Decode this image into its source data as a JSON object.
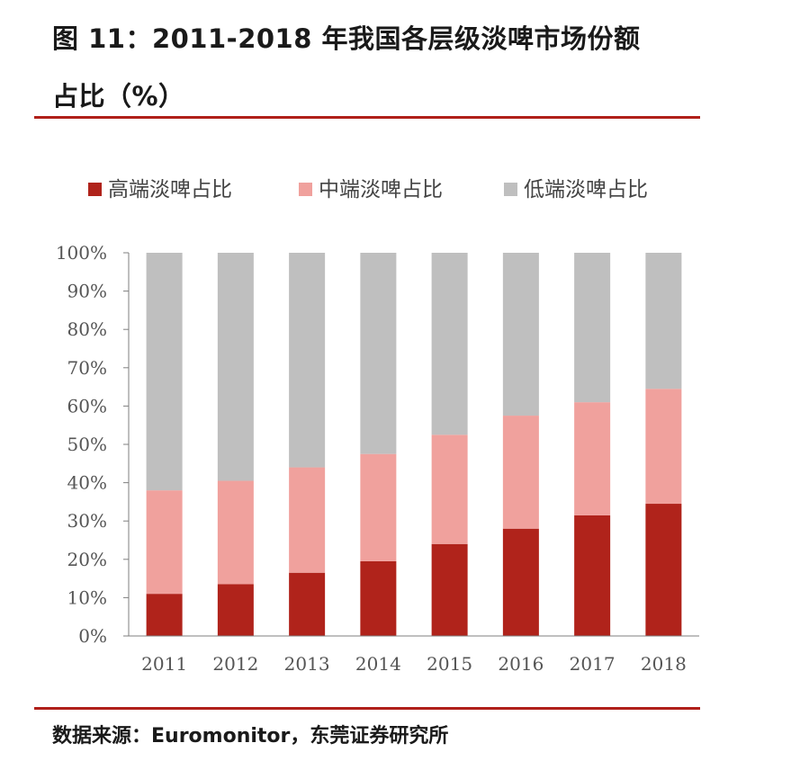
{
  "title_line1": "图 11：2011-2018 年我国各层级淡啤市场份额",
  "title_line2": "占比（%）",
  "source": "数据来源：Euromonitor，东莞证券研究所",
  "colors": {
    "rule": "#b0201a",
    "high": "#b0231b",
    "mid": "#f0a19d",
    "low": "#bfbfbf"
  },
  "chart_data": {
    "type": "bar",
    "stacked": true,
    "categories": [
      "2011",
      "2012",
      "2013",
      "2014",
      "2015",
      "2016",
      "2017",
      "2018"
    ],
    "series": [
      {
        "name": "高端淡啤占比",
        "color": "#b0231b",
        "values": [
          11,
          13.5,
          16.5,
          19.5,
          24,
          28,
          31.5,
          34.5
        ]
      },
      {
        "name": "中端淡啤占比",
        "color": "#f0a19d",
        "values": [
          27,
          27,
          27.5,
          28,
          28.5,
          29.5,
          29.5,
          30
        ]
      },
      {
        "name": "低端淡啤占比",
        "color": "#bfbfbf",
        "values": [
          62,
          59.5,
          56,
          52.5,
          47.5,
          42.5,
          39,
          35.5
        ]
      }
    ],
    "ylim": [
      0,
      100
    ],
    "yticks": [
      "0%",
      "10%",
      "20%",
      "30%",
      "40%",
      "50%",
      "60%",
      "70%",
      "80%",
      "90%",
      "100%"
    ],
    "legend_position": "top",
    "grid": false
  }
}
